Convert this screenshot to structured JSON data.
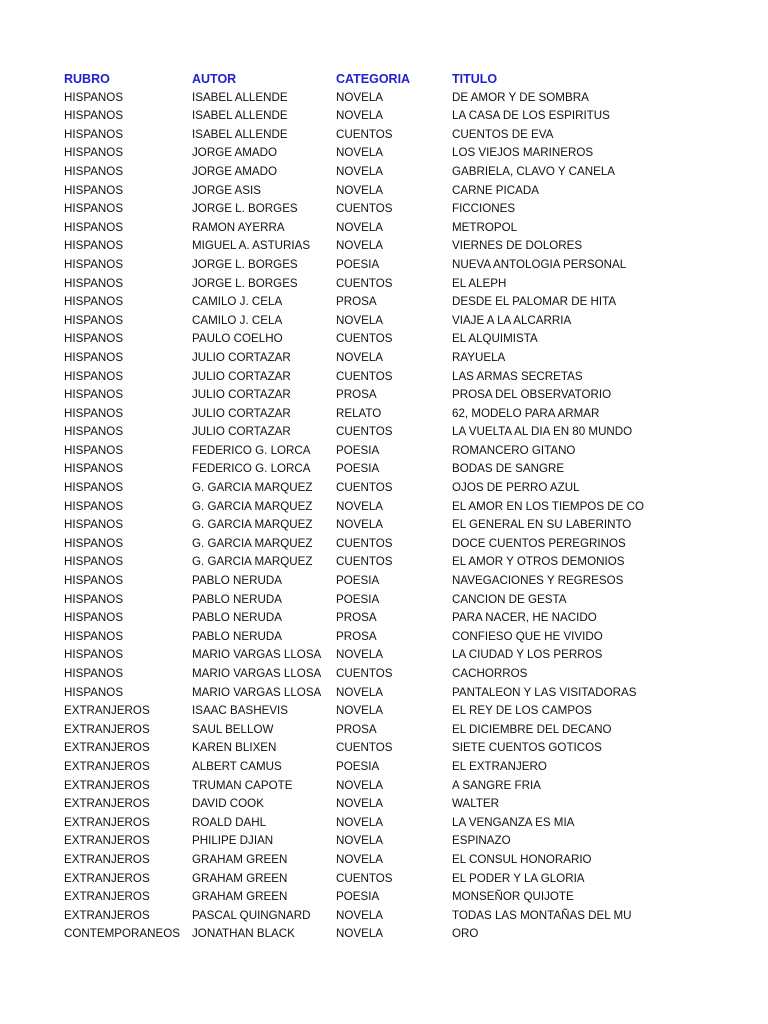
{
  "colors": {
    "header": "#2222cc",
    "text": "#111111"
  },
  "headers": [
    "RUBRO",
    "AUTOR",
    "CATEGORIA",
    "TITULO"
  ],
  "rows": [
    [
      "HISPANOS",
      "ISABEL ALLENDE",
      "NOVELA",
      "DE AMOR Y DE SOMBRA"
    ],
    [
      "HISPANOS",
      "ISABEL ALLENDE",
      "NOVELA",
      "LA CASA DE LOS ESPIRITUS"
    ],
    [
      "HISPANOS",
      "ISABEL ALLENDE",
      "CUENTOS",
      "CUENTOS DE EVA"
    ],
    [
      "HISPANOS",
      "JORGE AMADO",
      "NOVELA",
      "LOS VIEJOS MARINEROS"
    ],
    [
      "HISPANOS",
      "JORGE AMADO",
      "NOVELA",
      "GABRIELA, CLAVO Y CANELA"
    ],
    [
      "HISPANOS",
      "JORGE ASIS",
      "NOVELA",
      "CARNE PICADA"
    ],
    [
      "HISPANOS",
      "JORGE L. BORGES",
      "CUENTOS",
      "FICCIONES"
    ],
    [
      "HISPANOS",
      "RAMON AYERRA",
      "NOVELA",
      "METROPOL"
    ],
    [
      "HISPANOS",
      "MIGUEL A. ASTURIAS",
      "NOVELA",
      "VIERNES DE DOLORES"
    ],
    [
      "HISPANOS",
      "JORGE L. BORGES",
      "POESIA",
      "NUEVA ANTOLOGIA PERSONAL"
    ],
    [
      "HISPANOS",
      "JORGE L. BORGES",
      "CUENTOS",
      "EL ALEPH"
    ],
    [
      "HISPANOS",
      "CAMILO J. CELA",
      "PROSA",
      "DESDE EL PALOMAR DE HITA"
    ],
    [
      "HISPANOS",
      "CAMILO J. CELA",
      "NOVELA",
      "VIAJE A LA ALCARRIA"
    ],
    [
      "HISPANOS",
      "PAULO COELHO",
      "CUENTOS",
      "EL ALQUIMISTA"
    ],
    [
      "HISPANOS",
      "JULIO CORTAZAR",
      "NOVELA",
      "RAYUELA"
    ],
    [
      "HISPANOS",
      "JULIO CORTAZAR",
      "CUENTOS",
      "LAS ARMAS SECRETAS"
    ],
    [
      "HISPANOS",
      "JULIO CORTAZAR",
      "PROSA",
      "PROSA DEL OBSERVATORIO"
    ],
    [
      "HISPANOS",
      "JULIO CORTAZAR",
      "RELATO",
      "62, MODELO PARA ARMAR"
    ],
    [
      "HISPANOS",
      "JULIO CORTAZAR",
      "CUENTOS",
      "LA VUELTA AL DIA EN 80 MUNDO"
    ],
    [
      "HISPANOS",
      "FEDERICO G. LORCA",
      "POESIA",
      "ROMANCERO GITANO"
    ],
    [
      "HISPANOS",
      "FEDERICO G. LORCA",
      "POESIA",
      "BODAS DE SANGRE"
    ],
    [
      "HISPANOS",
      "G. GARCIA MARQUEZ",
      "CUENTOS",
      "OJOS DE PERRO AZUL"
    ],
    [
      "HISPANOS",
      "G. GARCIA MARQUEZ",
      "NOVELA",
      "EL AMOR EN LOS TIEMPOS DE CO"
    ],
    [
      "HISPANOS",
      "G. GARCIA MARQUEZ",
      "NOVELA",
      "EL GENERAL EN SU LABERINTO"
    ],
    [
      "HISPANOS",
      "G. GARCIA MARQUEZ",
      "CUENTOS",
      "DOCE CUENTOS PEREGRINOS"
    ],
    [
      "HISPANOS",
      "G. GARCIA MARQUEZ",
      "CUENTOS",
      "EL AMOR Y OTROS DEMONIOS"
    ],
    [
      "HISPANOS",
      "PABLO NERUDA",
      "POESIA",
      "NAVEGACIONES Y REGRESOS"
    ],
    [
      "HISPANOS",
      "PABLO NERUDA",
      "POESIA",
      "CANCION DE GESTA"
    ],
    [
      "HISPANOS",
      "PABLO NERUDA",
      "PROSA",
      "PARA NACER, HE NACIDO"
    ],
    [
      "HISPANOS",
      "PABLO NERUDA",
      "PROSA",
      "CONFIESO QUE HE VIVIDO"
    ],
    [
      "HISPANOS",
      "MARIO VARGAS LLOSA",
      "NOVELA",
      "LA CIUDAD Y LOS PERROS"
    ],
    [
      "HISPANOS",
      "MARIO VARGAS LLOSA",
      "CUENTOS",
      "CACHORROS"
    ],
    [
      "HISPANOS",
      "MARIO VARGAS LLOSA",
      "NOVELA",
      "PANTALEON Y LAS VISITADORAS"
    ],
    [
      "EXTRANJEROS",
      "ISAAC BASHEVIS",
      "NOVELA",
      "EL REY DE LOS CAMPOS"
    ],
    [
      "EXTRANJEROS",
      "SAUL BELLOW",
      "PROSA",
      "EL DICIEMBRE DEL DECANO"
    ],
    [
      "EXTRANJEROS",
      "KAREN BLIXEN",
      "CUENTOS",
      "SIETE CUENTOS GOTICOS"
    ],
    [
      "EXTRANJEROS",
      "ALBERT CAMUS",
      "POESIA",
      "EL EXTRANJERO"
    ],
    [
      "EXTRANJEROS",
      "TRUMAN CAPOTE",
      "NOVELA",
      "A SANGRE FRIA"
    ],
    [
      "EXTRANJEROS",
      "DAVID COOK",
      "NOVELA",
      "WALTER"
    ],
    [
      "EXTRANJEROS",
      "ROALD DAHL",
      "NOVELA",
      "LA VENGANZA ES MIA"
    ],
    [
      "EXTRANJEROS",
      "PHILIPE DJIAN",
      "NOVELA",
      "ESPINAZO"
    ],
    [
      "EXTRANJEROS",
      "GRAHAM GREEN",
      "NOVELA",
      "EL CONSUL HONORARIO"
    ],
    [
      "EXTRANJEROS",
      "GRAHAM GREEN",
      "CUENTOS",
      "EL PODER Y LA GLORIA"
    ],
    [
      "EXTRANJEROS",
      "GRAHAM GREEN",
      "POESIA",
      "MONSEÑOR QUIJOTE"
    ],
    [
      "EXTRANJEROS",
      "PASCAL QUINGNARD",
      "NOVELA",
      "TODAS LAS MONTAÑAS DEL MU"
    ],
    [
      "CONTEMPORANEOS",
      "JONATHAN BLACK",
      "NOVELA",
      "ORO"
    ]
  ]
}
